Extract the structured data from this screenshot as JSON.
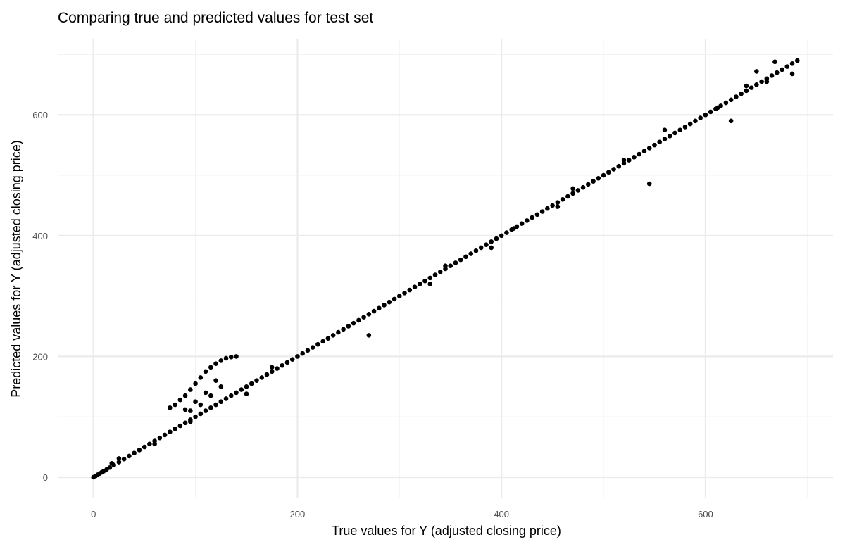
{
  "chart_data": {
    "type": "scatter",
    "title": "Comparing true and predicted values for test set",
    "xlabel": "True values for Y (adjusted closing price)",
    "ylabel": "Predicted values for Y (adjusted closing price)",
    "xlim": [
      -35,
      725
    ],
    "ylim": [
      -35,
      725
    ],
    "x_ticks": [
      0,
      200,
      400,
      600
    ],
    "y_ticks": [
      0,
      200,
      400,
      600
    ],
    "x_tick_labels": [
      "0",
      "200",
      "400",
      "600"
    ],
    "y_tick_labels": [
      "0",
      "200",
      "400",
      "600"
    ],
    "grid": true,
    "legend": "none",
    "colors": {
      "point": "#000000",
      "grid_major": "#ebebeb",
      "grid_minor": "#f3f3f3"
    },
    "series": [
      {
        "x": [
          0,
          2,
          4,
          6,
          8,
          10,
          13,
          16,
          20,
          25,
          30,
          35,
          40,
          45,
          50,
          55,
          60,
          65,
          70,
          75,
          80,
          85,
          90,
          95,
          100,
          105,
          110,
          115,
          120,
          125,
          130,
          135,
          140,
          145,
          150,
          155,
          160,
          165,
          170,
          175,
          180,
          185,
          190,
          195,
          200,
          205,
          210,
          215,
          220,
          225,
          230,
          235,
          240,
          245,
          250,
          255,
          260,
          265,
          270,
          275,
          280,
          285,
          290,
          295,
          300,
          305,
          310,
          315,
          320,
          325,
          330,
          335,
          340,
          345,
          350,
          355,
          360,
          365,
          370,
          375,
          380,
          385,
          390,
          395,
          400,
          405,
          410,
          415,
          420,
          425,
          430,
          435,
          440,
          445,
          450,
          455,
          460,
          465,
          470,
          475,
          480,
          485,
          490,
          495,
          500,
          505,
          510,
          515,
          520,
          525,
          530,
          535,
          540,
          545,
          550,
          555,
          560,
          565,
          570,
          575,
          580,
          585,
          590,
          595,
          600,
          605,
          610,
          615,
          620,
          625,
          630,
          635,
          640,
          645,
          650,
          655,
          660,
          665,
          670,
          675,
          680,
          685,
          690,
          75,
          80,
          85,
          90,
          95,
          100,
          105,
          110,
          115,
          120,
          125,
          130,
          135,
          140,
          95,
          105,
          115,
          125,
          100,
          110,
          120,
          90,
          18,
          25,
          60,
          95,
          150,
          175,
          270,
          330,
          345,
          390,
          412,
          455,
          470,
          545,
          625,
          612,
          640,
          660,
          668,
          650,
          685,
          560,
          520
        ],
        "y": [
          0,
          2,
          4,
          6,
          8,
          10,
          13,
          16,
          20,
          25,
          30,
          35,
          40,
          45,
          50,
          55,
          60,
          65,
          70,
          75,
          80,
          85,
          90,
          95,
          100,
          105,
          110,
          115,
          120,
          125,
          130,
          135,
          140,
          145,
          150,
          155,
          160,
          165,
          170,
          175,
          180,
          185,
          190,
          195,
          200,
          205,
          210,
          215,
          220,
          225,
          230,
          235,
          240,
          245,
          250,
          255,
          260,
          265,
          270,
          275,
          280,
          285,
          290,
          295,
          300,
          305,
          310,
          315,
          320,
          325,
          330,
          335,
          340,
          345,
          350,
          355,
          360,
          365,
          370,
          375,
          380,
          385,
          390,
          395,
          400,
          405,
          410,
          415,
          420,
          425,
          430,
          435,
          440,
          445,
          450,
          455,
          460,
          465,
          470,
          475,
          480,
          485,
          490,
          495,
          500,
          505,
          510,
          515,
          520,
          525,
          530,
          535,
          540,
          545,
          550,
          555,
          560,
          565,
          570,
          575,
          580,
          585,
          590,
          595,
          600,
          605,
          610,
          615,
          620,
          625,
          630,
          635,
          640,
          645,
          650,
          655,
          660,
          665,
          670,
          675,
          680,
          685,
          690,
          115,
          120,
          128,
          135,
          145,
          155,
          165,
          175,
          182,
          188,
          193,
          197,
          199,
          200,
          110,
          120,
          135,
          150,
          125,
          140,
          160,
          112,
          23,
          31,
          55,
          92,
          138,
          182,
          235,
          320,
          350,
          380,
          412,
          448,
          478,
          486,
          590,
          612,
          648,
          655,
          688,
          672,
          668,
          575,
          525
        ]
      }
    ]
  }
}
